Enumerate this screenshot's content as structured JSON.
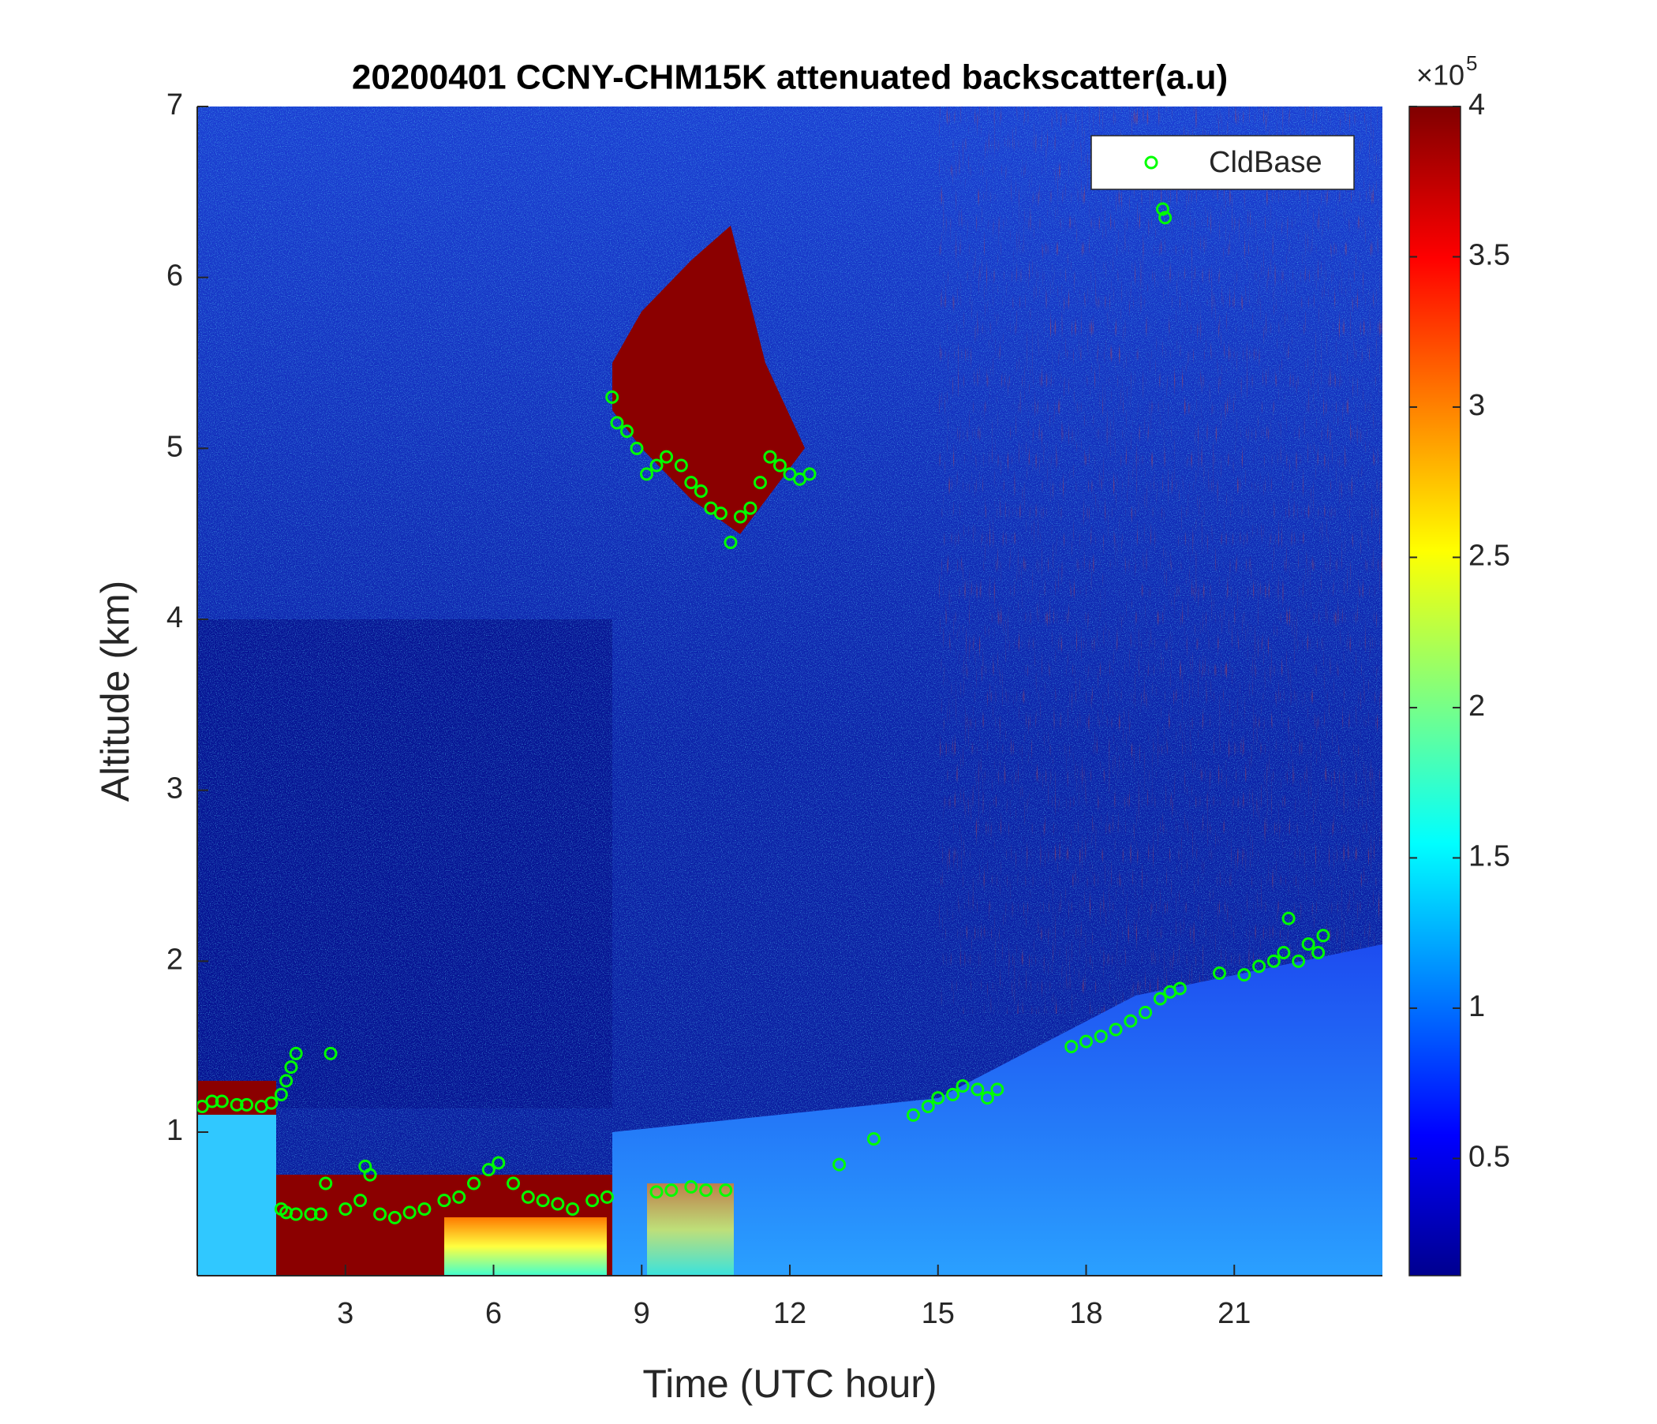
{
  "chart_data": {
    "type": "scatter",
    "title": "20200401 CCNY-CHM15K attenuated backscatter(a.u)",
    "x_label": "Time (UTC hour)",
    "y_label": "Altitude (km)",
    "xlim": [
      0,
      24
    ],
    "xticks": [
      3,
      6,
      9,
      12,
      15,
      18,
      21
    ],
    "ylim": [
      0.16,
      7
    ],
    "yticks": [
      1,
      2,
      3,
      4,
      5,
      6,
      7
    ],
    "legend": "upper right",
    "series": [
      {
        "name": "CldBase",
        "color": "#00ff00",
        "x": [
          0.1,
          0.3,
          0.5,
          0.8,
          1.0,
          1.3,
          1.5,
          1.7,
          1.8,
          1.9,
          2.0,
          1.7,
          1.8,
          2.0,
          2.3,
          2.5,
          2.7,
          2.6,
          3.0,
          3.3,
          3.4,
          3.5,
          3.7,
          4.0,
          4.3,
          4.6,
          5.0,
          5.3,
          5.6,
          5.9,
          6.1,
          6.4,
          6.7,
          7.0,
          7.3,
          7.6,
          8.0,
          8.3,
          8.4,
          8.5,
          8.7,
          8.9,
          9.1,
          9.3,
          9.5,
          9.8,
          10.0,
          10.2,
          10.4,
          10.6,
          10.8,
          11.0,
          11.2,
          11.4,
          11.6,
          11.8,
          12.0,
          12.2,
          12.4,
          9.3,
          9.6,
          10.0,
          10.3,
          10.7,
          13.0,
          13.7,
          14.5,
          14.8,
          15.0,
          15.3,
          15.5,
          15.8,
          16.0,
          16.2,
          17.7,
          18.0,
          18.3,
          18.6,
          18.9,
          19.2,
          19.5,
          19.7,
          19.9,
          19.55,
          19.6,
          20.7,
          21.2,
          21.5,
          21.8,
          22.0,
          22.1,
          22.3,
          22.5,
          22.7,
          22.8
        ],
        "values": [
          1.15,
          1.18,
          1.18,
          1.16,
          1.16,
          1.15,
          1.17,
          1.22,
          1.3,
          1.38,
          1.46,
          0.55,
          0.53,
          0.52,
          0.52,
          0.52,
          1.46,
          0.7,
          0.55,
          0.6,
          0.8,
          0.75,
          0.52,
          0.5,
          0.53,
          0.55,
          0.6,
          0.62,
          0.7,
          0.78,
          0.82,
          0.7,
          0.62,
          0.6,
          0.58,
          0.55,
          0.6,
          0.62,
          5.3,
          5.15,
          5.1,
          5.0,
          4.85,
          4.9,
          4.95,
          4.9,
          4.8,
          4.75,
          4.65,
          4.62,
          4.45,
          4.6,
          4.65,
          4.8,
          4.95,
          4.9,
          4.85,
          4.82,
          4.85,
          0.65,
          0.66,
          0.68,
          0.66,
          0.66,
          0.81,
          0.96,
          1.1,
          1.15,
          1.2,
          1.22,
          1.27,
          1.25,
          1.2,
          1.25,
          1.5,
          1.53,
          1.56,
          1.6,
          1.65,
          1.7,
          1.78,
          1.82,
          1.84,
          6.4,
          6.35,
          1.93,
          1.92,
          1.97,
          2.0,
          2.05,
          2.25,
          2.0,
          2.1,
          2.05,
          2.15
        ]
      }
    ],
    "colorbar": {
      "clim": [
        0.11,
        4
      ],
      "ticks": [
        0.5,
        1,
        1.5,
        2,
        2.5,
        3,
        3.5,
        4
      ],
      "multiplier": "×10",
      "exponent": "5"
    }
  }
}
